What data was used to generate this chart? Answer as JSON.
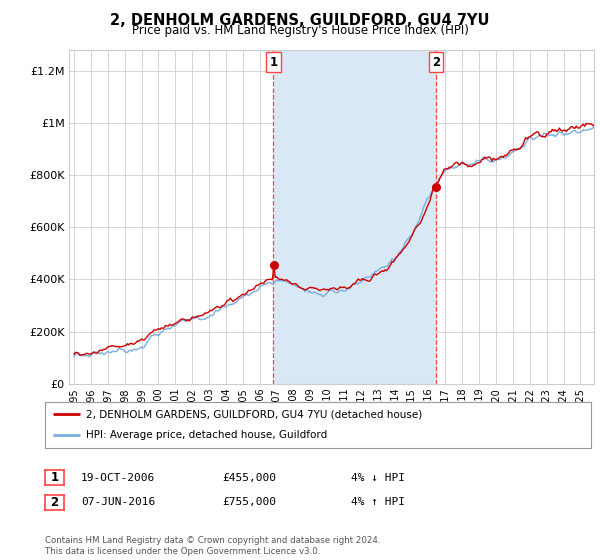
{
  "title": "2, DENHOLM GARDENS, GUILDFORD, GU4 7YU",
  "subtitle": "Price paid vs. HM Land Registry's House Price Index (HPI)",
  "background_color": "#ffffff",
  "plot_bg_color": "#ffffff",
  "transaction1_date": "19-OCT-2006",
  "transaction1_price": 455000,
  "transaction1_label": "4% ↓ HPI",
  "transaction1_x": 2006.8,
  "transaction2_date": "07-JUN-2016",
  "transaction2_price": 755000,
  "transaction2_label": "4% ↑ HPI",
  "transaction2_x": 2016.44,
  "legend_line1": "2, DENHOLM GARDENS, GUILDFORD, GU4 7YU (detached house)",
  "legend_line2": "HPI: Average price, detached house, Guildford",
  "footer": "Contains HM Land Registry data © Crown copyright and database right 2024.\nThis data is licensed under the Open Government Licence v3.0.",
  "hpi_color": "#7aade0",
  "price_color": "#cc0000",
  "dashed_color": "#ff4444",
  "shade_color": "#d8e8f5",
  "grid_color": "#cccccc",
  "yticks": [
    0,
    200000,
    400000,
    600000,
    800000,
    1000000,
    1200000
  ],
  "ylabels": [
    "£0",
    "£200K",
    "£400K",
    "£600K",
    "£800K",
    "£1M",
    "£1.2M"
  ],
  "xmin": 1994.7,
  "xmax": 2025.8,
  "ymin": 0,
  "ymax": 1280000
}
